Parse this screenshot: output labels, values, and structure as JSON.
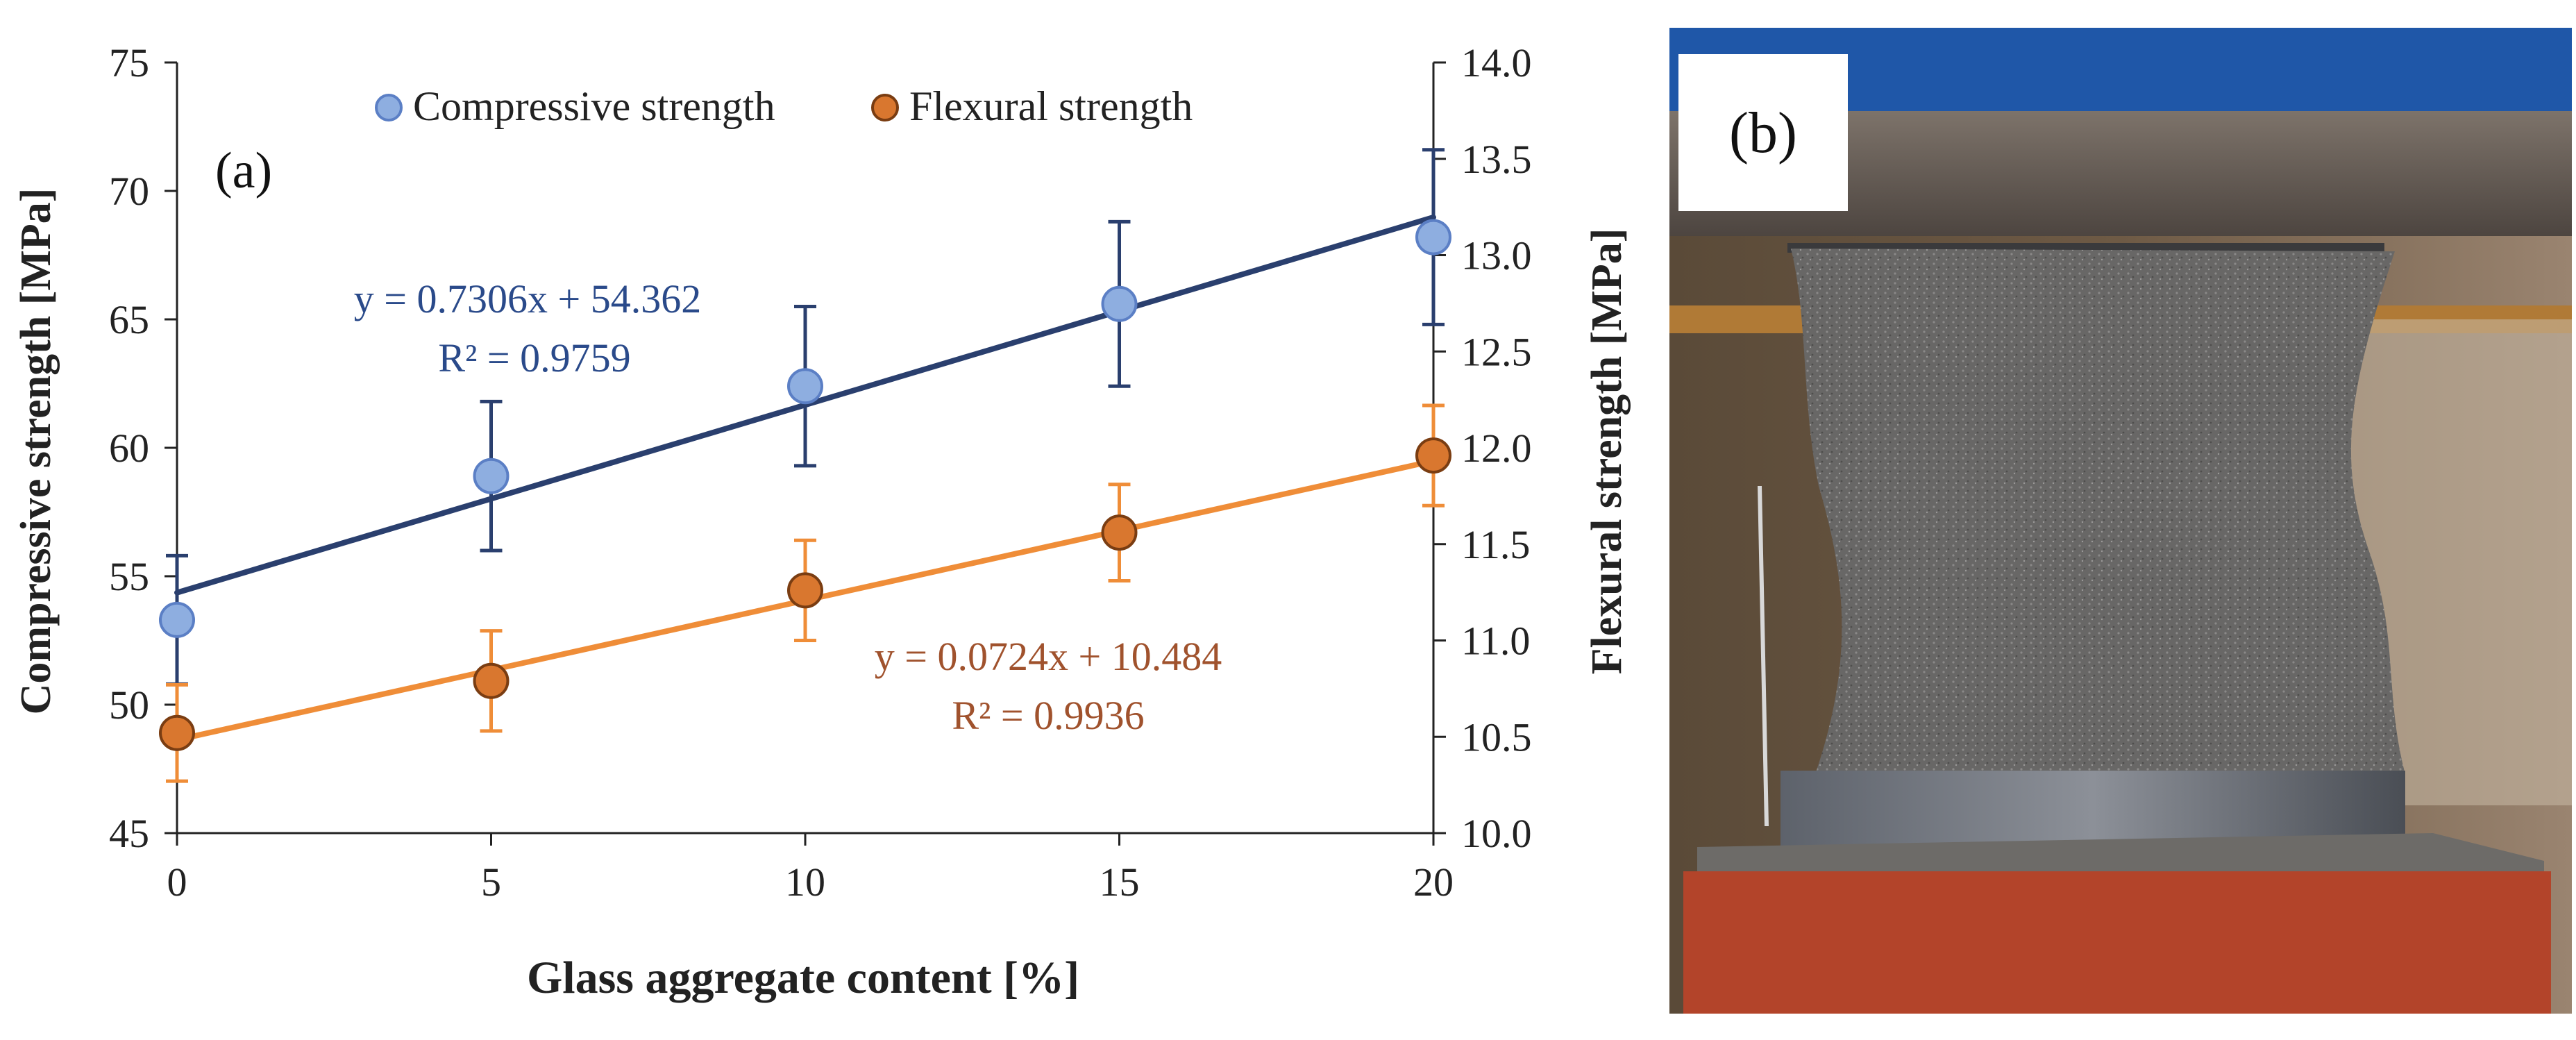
{
  "chart_data": {
    "type": "scatter",
    "panel_label": "(a)",
    "xlabel": "Glass aggregate content [%]",
    "ylabel": "Compressive strength [MPa]",
    "y2label": "Flexural strength [MPa]",
    "xlim": [
      0,
      20
    ],
    "ylim": [
      45,
      75
    ],
    "y2lim": [
      10.0,
      14.0
    ],
    "x_ticks": [
      "0",
      "5",
      "10",
      "15",
      "20"
    ],
    "y_ticks": [
      "45",
      "50",
      "55",
      "60",
      "65",
      "70",
      "75"
    ],
    "y2_ticks": [
      "10.0",
      "10.5",
      "11.0",
      "11.5",
      "12.0",
      "12.5",
      "13.0",
      "13.5",
      "14.0"
    ],
    "legend_position": "top",
    "grid": false,
    "series": [
      {
        "name": "Compressive strength",
        "axis": "left",
        "color": "#2a3f6e",
        "marker_color": "#8eaee0",
        "marker_edge": "#5b7fc5",
        "x": [
          0,
          5,
          10,
          15,
          20
        ],
        "y": [
          53.3,
          58.9,
          62.4,
          65.6,
          68.2
        ],
        "error": [
          2.5,
          2.9,
          3.1,
          3.2,
          3.4
        ],
        "trendline": {
          "slope": 0.7306,
          "intercept": 54.362
        },
        "equation": "y = 0.7306x + 54.362",
        "r2": "R² = 0.9759"
      },
      {
        "name": "Flexural strength",
        "axis": "right",
        "color": "#ef8d38",
        "marker_color": "#d9772f",
        "marker_edge": "#7a3d12",
        "x": [
          0,
          5,
          10,
          15,
          20
        ],
        "y": [
          10.52,
          10.79,
          11.26,
          11.56,
          11.96
        ],
        "error": [
          0.25,
          0.26,
          0.26,
          0.25,
          0.26
        ],
        "trendline": {
          "slope": 0.0724,
          "intercept": 10.484
        },
        "equation": "y = 0.0724x + 10.484",
        "r2": "R² = 0.9936"
      }
    ]
  },
  "photo_panel": {
    "label": "(b)"
  }
}
